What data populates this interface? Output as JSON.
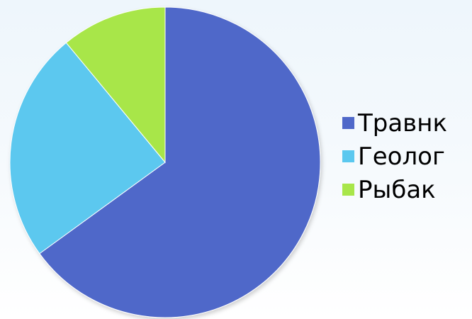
{
  "chart_data": {
    "type": "pie",
    "title": "",
    "categories": [
      "Травнк",
      "Геолог",
      "Рыбак"
    ],
    "values": [
      65,
      24,
      11
    ],
    "colors": [
      "#4f68c9",
      "#5bc8ef",
      "#a8e64a"
    ],
    "start_angle_deg": 0,
    "direction": "clockwise",
    "legend": "right"
  }
}
